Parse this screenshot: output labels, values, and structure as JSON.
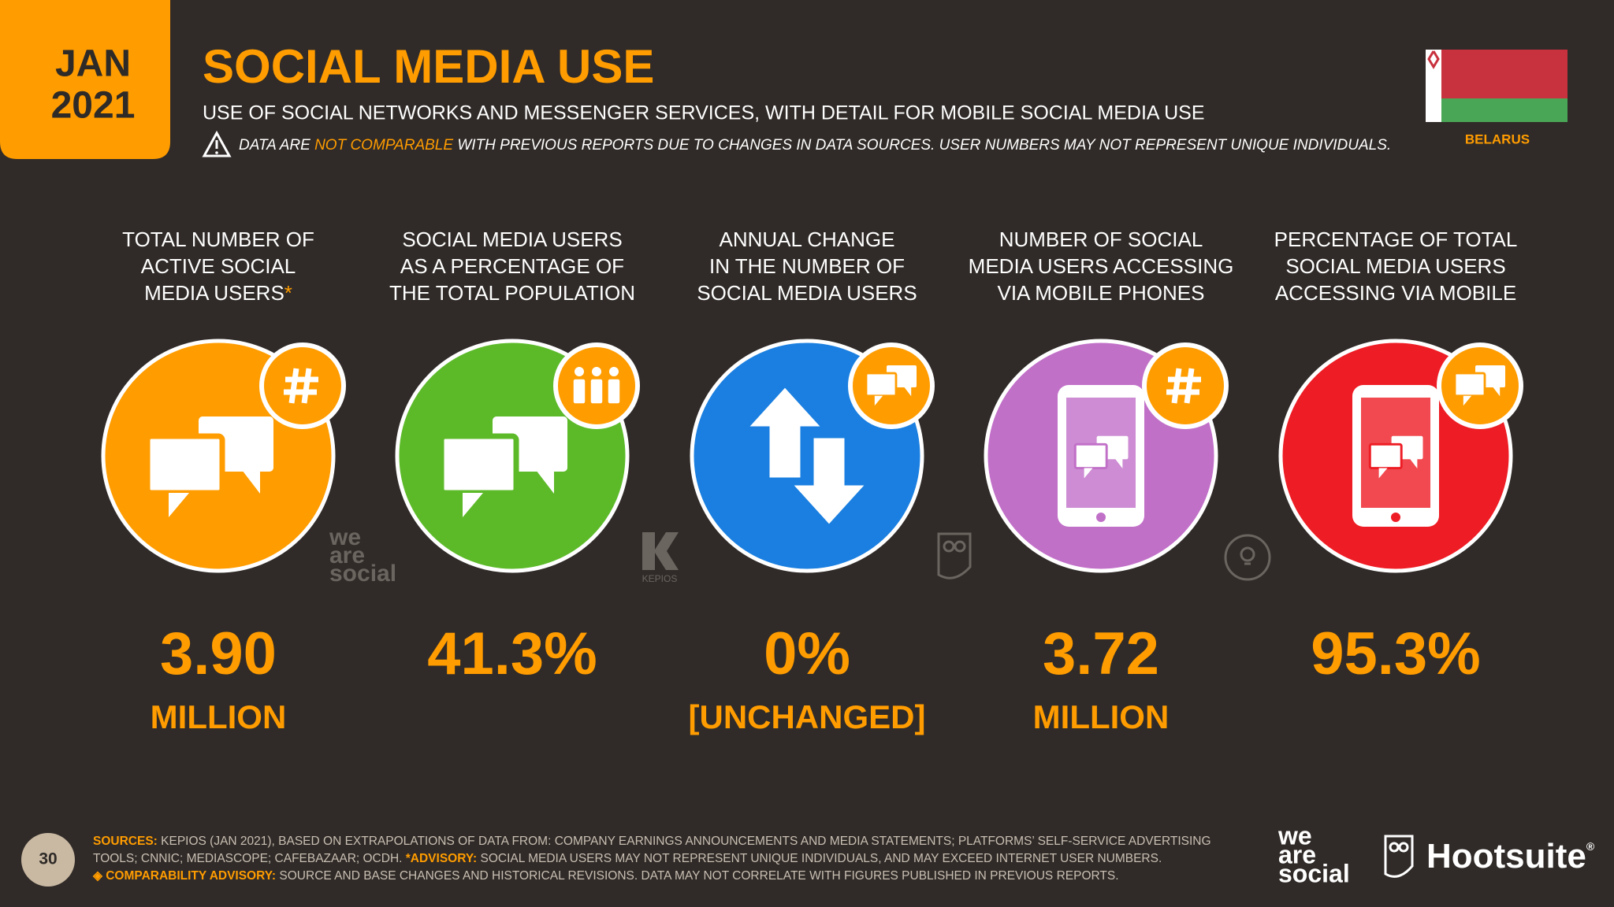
{
  "header": {
    "month": "JAN",
    "year": "2021",
    "title": "SOCIAL MEDIA USE",
    "subtitle": "USE OF SOCIAL NETWORKS AND MESSENGER SERVICES, WITH DETAIL FOR MOBILE SOCIAL MEDIA USE",
    "warning": [
      "DATA ARE",
      "NOT COMPARABLE",
      "WITH PREVIOUS REPORTS DUE TO CHANGES IN DATA SOURCES. USER NUMBERS MAY NOT REPRESENT UNIQUE INDIVIDUALS."
    ]
  },
  "country": "BELARUS",
  "cards": [
    {
      "label": [
        "TOTAL NUMBER OF",
        "ACTIVE SOCIAL",
        "MEDIA USERS"
      ],
      "marker": "*",
      "value": "3.90",
      "unit": "MILLION"
    },
    {
      "label": [
        "SOCIAL MEDIA USERS",
        "AS A PERCENTAGE OF",
        "THE TOTAL POPULATION"
      ],
      "value": "41.3%"
    },
    {
      "label": [
        "ANNUAL CHANGE",
        "IN THE NUMBER OF",
        "SOCIAL MEDIA USERS"
      ],
      "value": "0%",
      "unit": "[UNCHANGED]"
    },
    {
      "label": [
        "NUMBER OF SOCIAL",
        "MEDIA USERS ACCESSING",
        "VIA MOBILE PHONES"
      ],
      "value": "3.72",
      "unit": "MILLION"
    },
    {
      "label": [
        "PERCENTAGE OF TOTAL",
        "SOCIAL MEDIA USERS",
        "ACCESSING VIA MOBILE"
      ],
      "value": "95.3%"
    }
  ],
  "watermarks": {
    "brand": [
      "we",
      "are",
      "social"
    ],
    "kepios": "KEPIOS"
  },
  "footer": {
    "page": "30",
    "sources": [
      {
        "heading": "SOURCES:",
        "text": "KEPIOS (JAN 2021), BASED ON EXTRAPOLATIONS OF DATA FROM: COMPANY EARNINGS ANNOUNCEMENTS AND MEDIA STATEMENTS; PLATFORMS’ SELF-SERVICE ADVERTISING TOOLS; CNNIC; MEDIASCOPE; CAFEBAZAAR; OCDH."
      },
      {
        "heading": "*ADVISORY:",
        "text": "SOCIAL MEDIA USERS MAY NOT REPRESENT UNIQUE INDIVIDUALS, AND MAY EXCEED INTERNET USER NUMBERS."
      },
      {
        "heading": "◈ COMPARABILITY ADVISORY:",
        "text": "SOURCE AND BASE CHANGES AND HISTORICAL REVISIONS. DATA MAY NOT CORRELATE WITH FIGURES PUBLISHED IN PREVIOUS REPORTS."
      }
    ],
    "brand": [
      "we",
      "are",
      "social"
    ],
    "hootsuite": "Hootsuite",
    "trademark": "®"
  }
}
